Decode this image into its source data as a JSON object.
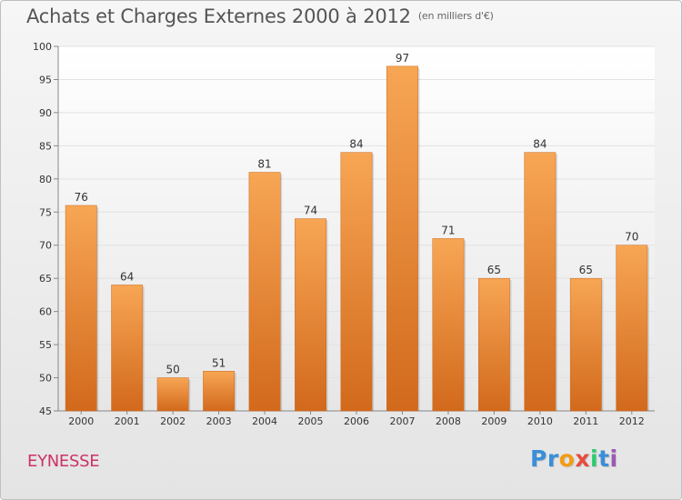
{
  "header": {
    "title": "Achats et Charges Externes 2000 à 2012",
    "unit": "(en milliers d'€)"
  },
  "commune": "EYNESSE",
  "logo": {
    "letters": [
      {
        "char": "P",
        "color": "#3a8fd8"
      },
      {
        "char": "r",
        "color": "#3a8fd8"
      },
      {
        "char": "o",
        "color": "#f39c12"
      },
      {
        "char": "x",
        "color": "#e74c3c"
      },
      {
        "char": "i",
        "color": "#2ecc71"
      },
      {
        "char": "t",
        "color": "#3a8fd8"
      },
      {
        "char": "i",
        "color": "#9b59b6"
      }
    ]
  },
  "chart_data": {
    "type": "bar",
    "title": "Achats et Charges Externes 2000 à 2012",
    "subtitle": "(en milliers d'€)",
    "xlabel": "",
    "ylabel": "",
    "categories": [
      "2000",
      "2001",
      "2002",
      "2003",
      "2004",
      "2005",
      "2006",
      "2007",
      "2008",
      "2009",
      "2010",
      "2011",
      "2012"
    ],
    "values": [
      76,
      64,
      50,
      51,
      81,
      74,
      84,
      97,
      71,
      65,
      84,
      65,
      70
    ],
    "ylim": [
      45,
      100
    ],
    "yticks": [
      45,
      50,
      55,
      60,
      65,
      70,
      75,
      80,
      85,
      90,
      95,
      100
    ],
    "grid": true,
    "bar_color_top": "#f7a654",
    "bar_color_bottom": "#d2691c"
  }
}
